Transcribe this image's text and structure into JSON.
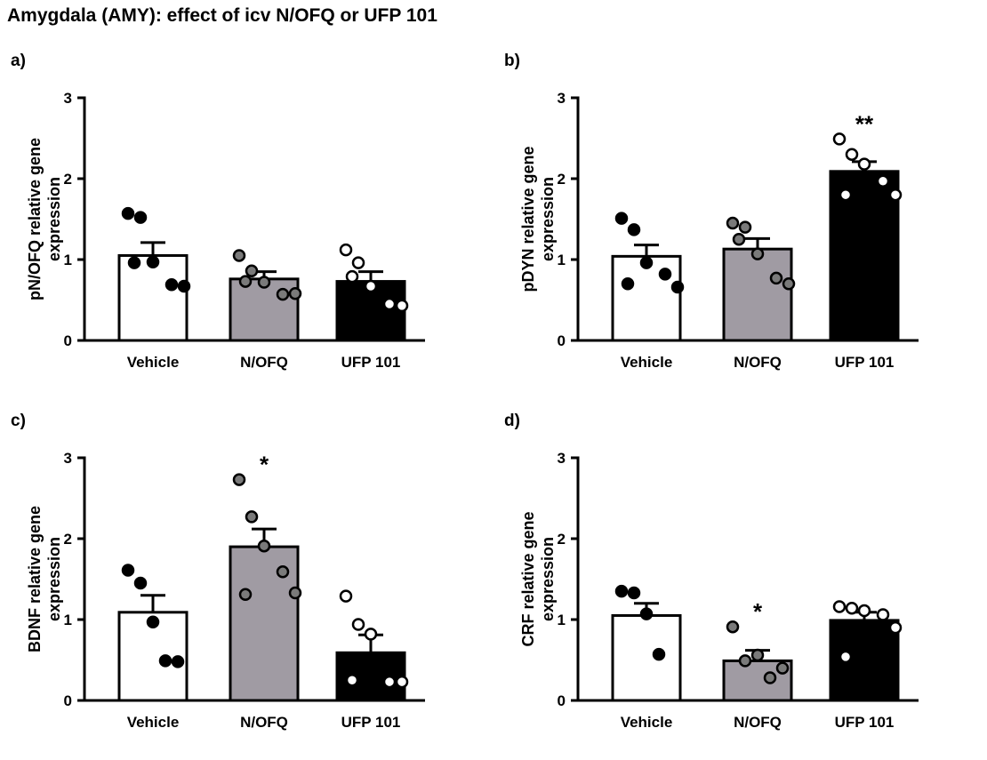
{
  "figure_title": "Amygdala (AMY): effect of icv N/OFQ or UFP 101",
  "colors": {
    "vehicle": "#ffffff",
    "nofq": "#a09ba3",
    "ufp101": "#000000",
    "dot_dark": "#000000",
    "dot_grey": "#7a7a7a",
    "dot_open": "#ffffff"
  },
  "chart_data": [
    {
      "type": "bar",
      "panel": "a)",
      "ylabel": "pN/OFQ relative gene expression",
      "ylabel_lines": [
        "pN/OFQ relative gene",
        "expression"
      ],
      "ylim": [
        0,
        3
      ],
      "yticks": [
        "0",
        "1",
        "2",
        "3"
      ],
      "categories": [
        "Vehicle",
        "N/OFQ",
        "UFP 101"
      ],
      "values": [
        1.05,
        0.76,
        0.73
      ],
      "sem": [
        0.16,
        0.09,
        0.12
      ],
      "significance": [
        "",
        "",
        ""
      ],
      "points": [
        [
          1.57,
          1.52,
          0.97,
          0.69,
          0.67,
          0.96
        ],
        [
          1.05,
          0.86,
          0.72,
          0.57,
          0.58,
          0.73
        ],
        [
          1.12,
          0.96,
          0.67,
          0.45,
          0.43,
          0.79
        ]
      ]
    },
    {
      "type": "bar",
      "panel": "b)",
      "ylabel": "pDYN relative gene expression",
      "ylabel_lines": [
        "pDYN relative gene",
        "expression"
      ],
      "ylim": [
        0,
        3
      ],
      "yticks": [
        "0",
        "1",
        "2",
        "3"
      ],
      "categories": [
        "Vehicle",
        "N/OFQ",
        "UFP 101"
      ],
      "values": [
        1.04,
        1.13,
        2.09
      ],
      "sem": [
        0.14,
        0.13,
        0.12
      ],
      "significance": [
        "",
        "",
        "**"
      ],
      "points": [
        [
          1.51,
          1.37,
          0.96,
          0.82,
          0.66,
          0.7
        ],
        [
          1.45,
          1.4,
          1.07,
          0.77,
          0.7,
          1.25
        ],
        [
          2.49,
          2.3,
          2.18,
          1.97,
          1.8,
          1.8
        ]
      ]
    },
    {
      "type": "bar",
      "panel": "c)",
      "ylabel": "BDNF relative gene expression",
      "ylabel_lines": [
        "BDNF relative gene",
        "expression"
      ],
      "ylim": [
        0,
        3
      ],
      "yticks": [
        "0",
        "1",
        "2",
        "3"
      ],
      "categories": [
        "Vehicle",
        "N/OFQ",
        "UFP 101"
      ],
      "values": [
        1.09,
        1.9,
        0.59
      ],
      "sem": [
        0.21,
        0.22,
        0.22
      ],
      "significance": [
        "",
        "*",
        ""
      ],
      "points": [
        [
          1.61,
          1.45,
          0.97,
          0.49,
          0.48
        ],
        [
          2.73,
          2.27,
          1.91,
          1.59,
          1.33,
          1.31
        ],
        [
          1.29,
          0.94,
          0.82,
          0.23,
          0.23,
          0.25
        ]
      ]
    },
    {
      "type": "bar",
      "panel": "d)",
      "ylabel": "CRF relative gene expression",
      "ylabel_lines": [
        "CRF relative gene",
        "expression"
      ],
      "ylim": [
        0,
        3
      ],
      "yticks": [
        "0",
        "1",
        "2",
        "3"
      ],
      "categories": [
        "Vehicle",
        "N/OFQ",
        "UFP 101"
      ],
      "values": [
        1.05,
        0.49,
        0.99
      ],
      "sem": [
        0.15,
        0.13,
        0.1
      ],
      "significance": [
        "",
        "*",
        ""
      ],
      "points": [
        [
          1.35,
          1.33,
          1.07,
          0.57
        ],
        [
          0.91,
          0.49,
          0.56,
          0.28,
          0.4
        ],
        [
          1.16,
          1.14,
          1.11,
          1.06,
          0.9,
          0.54
        ]
      ]
    }
  ]
}
